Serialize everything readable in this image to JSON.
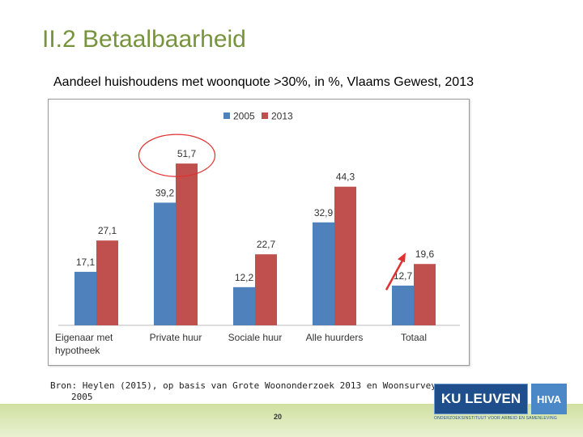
{
  "slide": {
    "title": "II.2 Betaalbaarheid",
    "subtitle": "Aandeel huishoudens met woonquote >30%, in %, Vlaams Gewest, 2013",
    "source_line1": "Bron: Heylen (2015), op basis van Grote Woononderzoek 2013 en Woonsurvey",
    "source_line2": "2005",
    "page_number": "20"
  },
  "logo": {
    "ku_text": "KU LEUVEN",
    "hiva_text": "HIVA",
    "subtext": "ONDERZOEKSINSTITUUT VOOR ARBEID EN SAMENLEVING"
  },
  "colors": {
    "series_2005": "#4f81bd",
    "series_2013": "#c0504d",
    "title": "#77933c"
  },
  "chart_data": {
    "type": "bar",
    "title": "Aandeel huishoudens met woonquote >30%, in %, Vlaams Gewest, 2013",
    "categories": [
      "Eigenaar met hypotheek",
      "Private huur",
      "Sociale huur",
      "Alle huurders",
      "Totaal"
    ],
    "category_lines": [
      [
        "Eigenaar met",
        "hypotheek"
      ],
      [
        "Private huur"
      ],
      [
        "Sociale huur"
      ],
      [
        "Alle huurders"
      ],
      [
        "Totaal"
      ]
    ],
    "series": [
      {
        "name": "2005",
        "values": [
          17.1,
          39.2,
          12.2,
          32.9,
          12.7
        ],
        "labels": [
          "17,1",
          "39,2",
          "12,2",
          "32,9",
          "12,7"
        ]
      },
      {
        "name": "2013",
        "values": [
          27.1,
          51.7,
          22.7,
          44.3,
          19.6
        ],
        "labels": [
          "27,1",
          "51,7",
          "22,7",
          "44,3",
          "19,6"
        ]
      }
    ],
    "ylim": [
      0,
      60
    ],
    "legend": "top",
    "grid": false,
    "annotations": [
      "circle around Private huur 2013 value",
      "arrow pointing up to Totaal 2013 value"
    ]
  }
}
